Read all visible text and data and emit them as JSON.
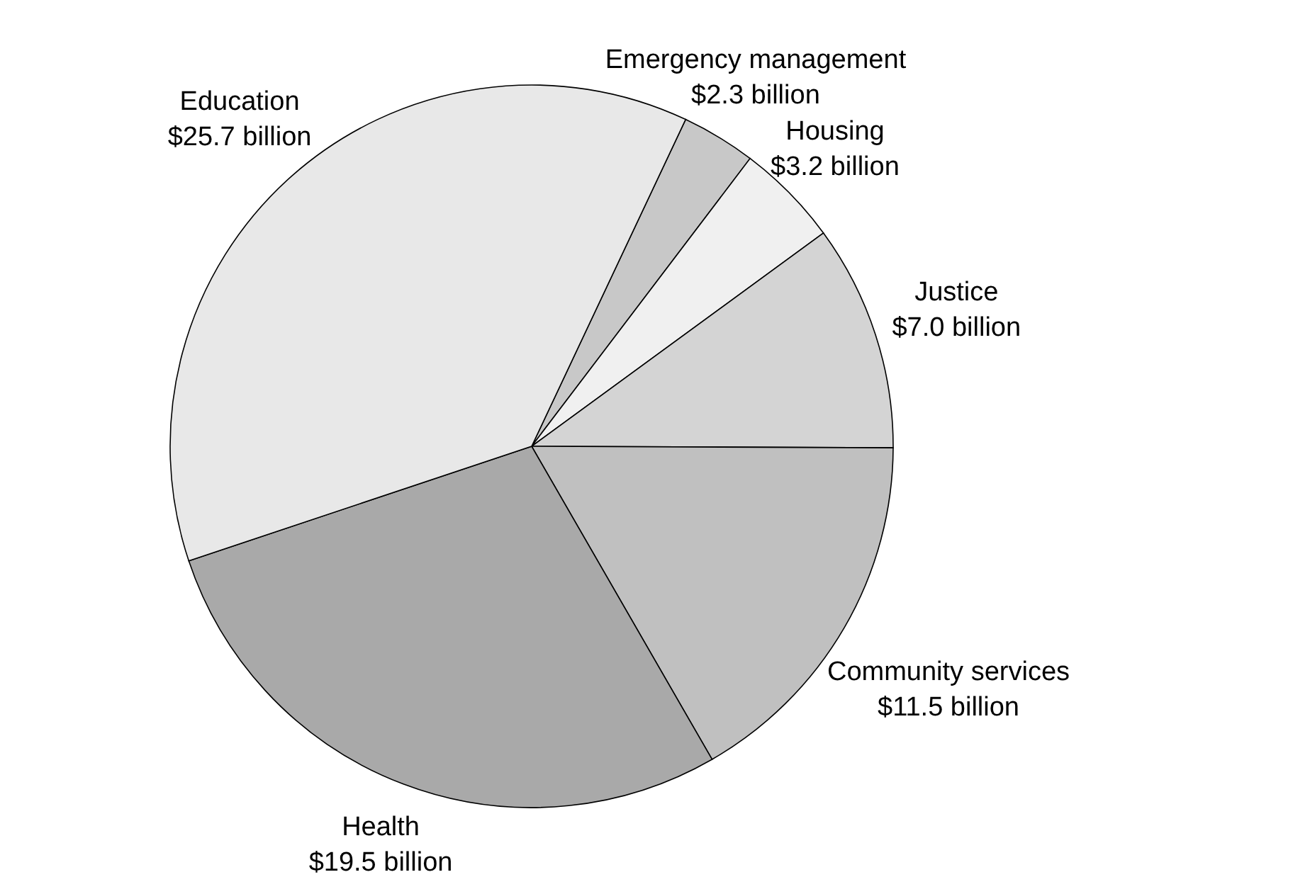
{
  "chart_data": {
    "type": "pie",
    "categories": [
      "Emergency management",
      "Housing",
      "Justice",
      "Community services",
      "Health",
      "Education"
    ],
    "values": [
      2.3,
      3.2,
      7.0,
      11.5,
      19.5,
      25.7
    ],
    "value_labels": [
      "$2.3 billion",
      "$3.2 billion",
      "$7.0 billion",
      "$11.5 billion",
      "$19.5 billion",
      "$25.7 billion"
    ],
    "colors": [
      "#c8c8c8",
      "#f0f0f0",
      "#d4d4d4",
      "#c0c0c0",
      "#a9a9a9",
      "#e8e8e8"
    ]
  }
}
